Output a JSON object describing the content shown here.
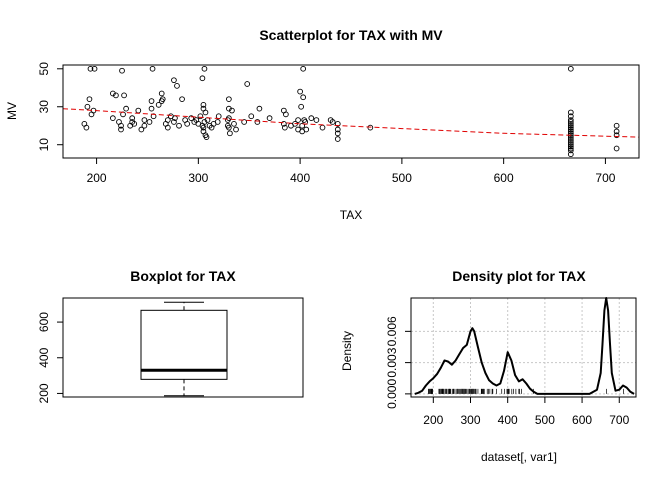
{
  "chart_data": [
    {
      "type": "scatter",
      "title": "Scatterplot for TAX with MV",
      "xlabel": "TAX",
      "ylabel": "MV",
      "xlim": [
        167,
        733
      ],
      "ylim": [
        3,
        52
      ],
      "xticks": [
        "200",
        "300",
        "400",
        "500",
        "600",
        "700"
      ],
      "yticks": [
        "10",
        "30",
        "50"
      ],
      "points": [
        [
          188,
          21
        ],
        [
          190,
          19
        ],
        [
          191,
          30
        ],
        [
          193,
          34
        ],
        [
          194,
          50
        ],
        [
          195,
          26
        ],
        [
          197,
          28
        ],
        [
          198,
          50
        ],
        [
          216,
          24
        ],
        [
          216,
          37
        ],
        [
          219,
          36
        ],
        [
          222,
          22
        ],
        [
          224,
          20
        ],
        [
          224,
          18
        ],
        [
          225,
          49
        ],
        [
          226,
          26
        ],
        [
          227,
          36
        ],
        [
          229,
          29
        ],
        [
          233,
          20
        ],
        [
          235,
          24
        ],
        [
          235,
          22
        ],
        [
          237,
          21
        ],
        [
          241,
          28
        ],
        [
          244,
          18
        ],
        [
          247,
          20
        ],
        [
          247,
          23
        ],
        [
          252,
          22
        ],
        [
          254,
          29
        ],
        [
          254,
          33
        ],
        [
          255,
          50
        ],
        [
          256,
          25
        ],
        [
          261,
          31
        ],
        [
          264,
          37
        ],
        [
          264,
          33
        ],
        [
          265,
          34
        ],
        [
          268,
          21
        ],
        [
          270,
          23
        ],
        [
          270,
          19
        ],
        [
          273,
          25
        ],
        [
          276,
          22
        ],
        [
          276,
          44
        ],
        [
          277,
          24
        ],
        [
          279,
          41
        ],
        [
          281,
          20
        ],
        [
          284,
          34
        ],
        [
          287,
          23
        ],
        [
          289,
          21
        ],
        [
          293,
          24
        ],
        [
          296,
          22
        ],
        [
          298,
          23
        ],
        [
          300,
          21
        ],
        [
          302,
          25
        ],
        [
          304,
          20
        ],
        [
          304,
          45
        ],
        [
          305,
          29
        ],
        [
          305,
          19
        ],
        [
          305,
          31
        ],
        [
          305,
          17
        ],
        [
          306,
          50
        ],
        [
          306,
          22
        ],
        [
          307,
          27
        ],
        [
          307,
          15
        ],
        [
          308,
          14
        ],
        [
          309,
          23
        ],
        [
          311,
          20
        ],
        [
          313,
          19
        ],
        [
          315,
          21
        ],
        [
          319,
          22
        ],
        [
          320,
          25
        ],
        [
          329,
          20
        ],
        [
          329,
          23
        ],
        [
          330,
          24
        ],
        [
          330,
          34
        ],
        [
          330,
          19
        ],
        [
          330,
          29
        ],
        [
          331,
          16
        ],
        [
          333,
          28
        ],
        [
          335,
          21
        ],
        [
          337,
          18
        ],
        [
          345,
          22
        ],
        [
          348,
          42
        ],
        [
          352,
          25
        ],
        [
          358,
          22
        ],
        [
          360,
          29
        ],
        [
          370,
          24
        ],
        [
          384,
          21
        ],
        [
          384,
          28
        ],
        [
          385,
          19
        ],
        [
          386,
          26
        ],
        [
          391,
          20
        ],
        [
          395,
          21
        ],
        [
          398,
          23
        ],
        [
          398,
          18
        ],
        [
          400,
          38
        ],
        [
          401,
          30
        ],
        [
          402,
          20
        ],
        [
          402,
          17
        ],
        [
          403,
          35
        ],
        [
          403,
          50
        ],
        [
          404,
          23
        ],
        [
          405,
          22
        ],
        [
          406,
          18
        ],
        [
          411,
          24
        ],
        [
          416,
          23
        ],
        [
          422,
          19
        ],
        [
          430,
          23
        ],
        [
          432,
          22
        ],
        [
          437,
          21
        ],
        [
          437,
          18
        ],
        [
          437,
          13
        ],
        [
          437,
          16
        ],
        [
          469,
          19
        ],
        [
          666,
          50
        ],
        [
          666,
          5
        ],
        [
          666,
          7
        ],
        [
          666,
          8
        ],
        [
          666,
          9
        ],
        [
          666,
          10
        ],
        [
          666,
          11
        ],
        [
          666,
          12
        ],
        [
          666,
          13
        ],
        [
          666,
          14
        ],
        [
          666,
          15
        ],
        [
          666,
          16
        ],
        [
          666,
          17
        ],
        [
          666,
          18
        ],
        [
          666,
          19
        ],
        [
          666,
          20
        ],
        [
          666,
          21
        ],
        [
          666,
          22
        ],
        [
          666,
          23
        ],
        [
          666,
          25
        ],
        [
          666,
          27
        ],
        [
          711,
          20
        ],
        [
          711,
          17
        ],
        [
          711,
          15
        ],
        [
          711,
          8
        ]
      ],
      "trend": [
        [
          167,
          29
        ],
        [
          200,
          28
        ],
        [
          300,
          24.5
        ],
        [
          400,
          21
        ],
        [
          500,
          18.5
        ],
        [
          600,
          16
        ],
        [
          700,
          14.5
        ],
        [
          733,
          14
        ]
      ],
      "trend_color": "#e00000"
    },
    {
      "type": "box",
      "title": "Boxplot for  TAX",
      "ylim": [
        180,
        735
      ],
      "yticks": [
        "200",
        "400",
        "600"
      ],
      "min": 187,
      "q1": 279,
      "median": 330,
      "q3": 666,
      "max": 711
    },
    {
      "type": "line",
      "title": "Density plot for TAX",
      "xlabel": "dataset[, var1]",
      "ylabel": "Density",
      "xlim": [
        140,
        745
      ],
      "ylim": [
        -0.0003,
        0.0092
      ],
      "xticks": [
        "200",
        "300",
        "400",
        "500",
        "600",
        "700"
      ],
      "yticks": [
        "0.000",
        "0.003",
        "0.006"
      ],
      "grid": true,
      "x": [
        150,
        160,
        170,
        180,
        190,
        200,
        210,
        220,
        230,
        240,
        250,
        260,
        270,
        280,
        290,
        300,
        305,
        310,
        320,
        330,
        340,
        350,
        360,
        370,
        380,
        390,
        400,
        410,
        420,
        430,
        440,
        450,
        460,
        470,
        480,
        500,
        550,
        600,
        620,
        640,
        650,
        655,
        660,
        665,
        670,
        675,
        680,
        690,
        700,
        710,
        720,
        730,
        740
      ],
      "values": [
        0.0,
        0.0001,
        0.0003,
        0.0008,
        0.0012,
        0.0015,
        0.0019,
        0.0025,
        0.0032,
        0.0031,
        0.0028,
        0.0032,
        0.0038,
        0.0044,
        0.0047,
        0.006,
        0.0063,
        0.006,
        0.0045,
        0.003,
        0.002,
        0.0013,
        0.001,
        0.0008,
        0.001,
        0.0022,
        0.004,
        0.0032,
        0.0018,
        0.0012,
        0.0014,
        0.001,
        0.0005,
        0.0002,
        0.0,
        0.0,
        0.0,
        0.0,
        0.0,
        0.0004,
        0.002,
        0.0048,
        0.008,
        0.0092,
        0.008,
        0.0048,
        0.002,
        0.0003,
        0.0004,
        0.0008,
        0.0006,
        0.0002,
        0.0
      ],
      "rug": [
        187,
        188,
        190,
        191,
        193,
        194,
        195,
        196,
        197,
        198,
        215,
        216,
        218,
        219,
        222,
        223,
        224,
        225,
        226,
        227,
        229,
        233,
        234,
        235,
        237,
        241,
        242,
        243,
        244,
        245,
        247,
        252,
        254,
        255,
        256,
        261,
        264,
        265,
        268,
        270,
        273,
        276,
        277,
        279,
        280,
        281,
        284,
        285,
        287,
        289,
        293,
        296,
        298,
        300,
        302,
        304,
        305,
        307,
        308,
        311,
        313,
        315,
        320,
        329,
        330,
        331,
        333,
        334,
        335,
        337,
        345,
        348,
        352,
        358,
        360,
        370,
        384,
        391,
        398,
        400,
        402,
        403,
        404,
        411,
        416,
        422,
        430,
        432,
        437,
        469,
        666,
        711
      ]
    }
  ]
}
